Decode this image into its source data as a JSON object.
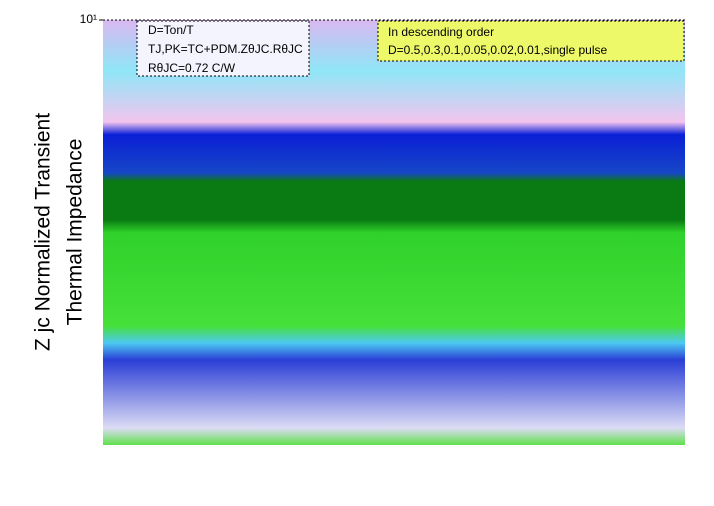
{
  "chart_data": {
    "type": "line",
    "ylabel": [
      "Z  jc  Normalized Transient",
      "Thermal   Impedance"
    ],
    "annotations": [
      "D=Ton/T",
      "TJ,PK=TC+PDM.ZθJC.RθJC",
      "RθJC=0.72 C/W"
    ],
    "legend_notes": [
      "In descending order",
      "D=0.5,0.3,0.1,0.05,0.02,0.01,single pulse"
    ],
    "ylim": [
      0.001,
      10
    ],
    "yticks": [
      {
        "value": 10,
        "label": "10¹"
      }
    ],
    "log_y": true,
    "grid": true
  }
}
